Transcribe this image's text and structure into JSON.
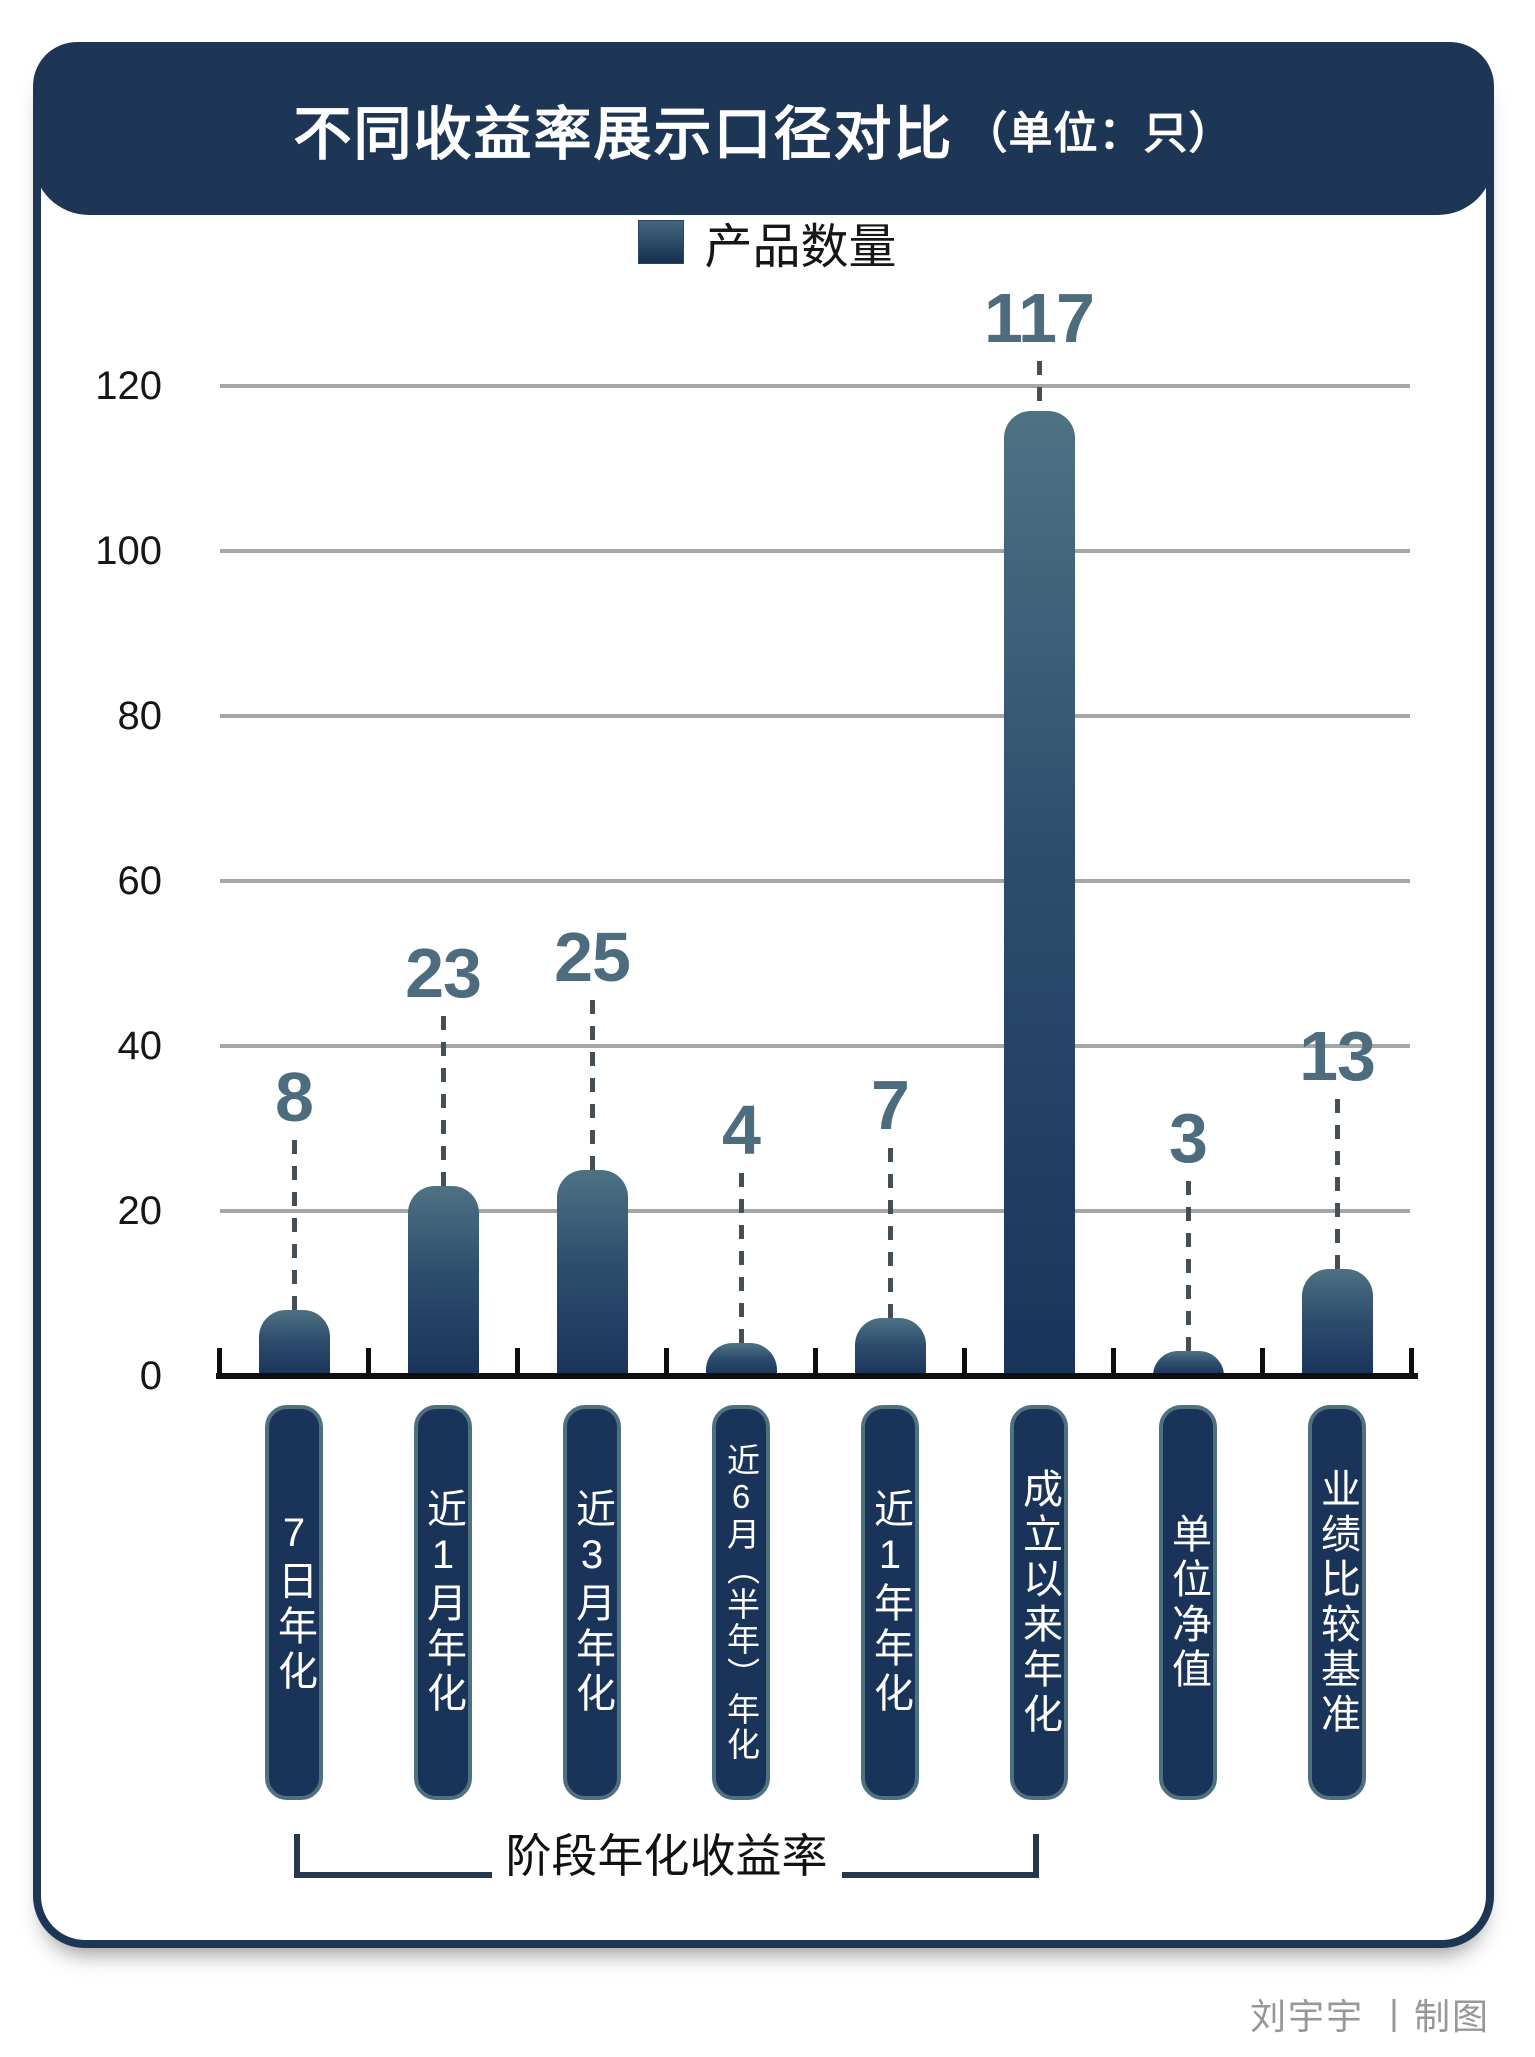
{
  "header": {
    "title_main": "不同收益率展示口径对比",
    "title_unit": "（单位：只）"
  },
  "legend": {
    "series_label": "产品数量"
  },
  "chart_data": {
    "type": "bar",
    "title": "不同收益率展示口径对比（单位：只）",
    "series_name": "产品数量",
    "legend_position": "top",
    "categories": [
      "7日年化",
      "近1月年化",
      "近3月年化",
      "近6月（半年）年化",
      "近1年年化",
      "成立以来年化",
      "单位净值",
      "业绩比较基准"
    ],
    "values": [
      8,
      23,
      25,
      4,
      7,
      117,
      3,
      13
    ],
    "xlabel": "",
    "ylabel": "",
    "ylim": [
      0,
      120
    ],
    "yticks": [
      0,
      20,
      40,
      60,
      80,
      100,
      120
    ],
    "grid": true,
    "annotations": {
      "group_bracket": {
        "label": "阶段年化收益率",
        "from_index": 0,
        "to_index": 5
      }
    }
  },
  "footer": {
    "credit": "刘宇宇 丨制图"
  },
  "colors": {
    "navy": "#1e3655",
    "bar_gradient_top": "#4e7284",
    "bar_gradient_bottom": "#19345a",
    "value_label": "#4d6d7e",
    "gridline": "#a6a6a6",
    "dash_line": "#454f58",
    "pill_border": "#4f7080",
    "axis": "#0e0e0e",
    "credit_text": "#979797"
  }
}
